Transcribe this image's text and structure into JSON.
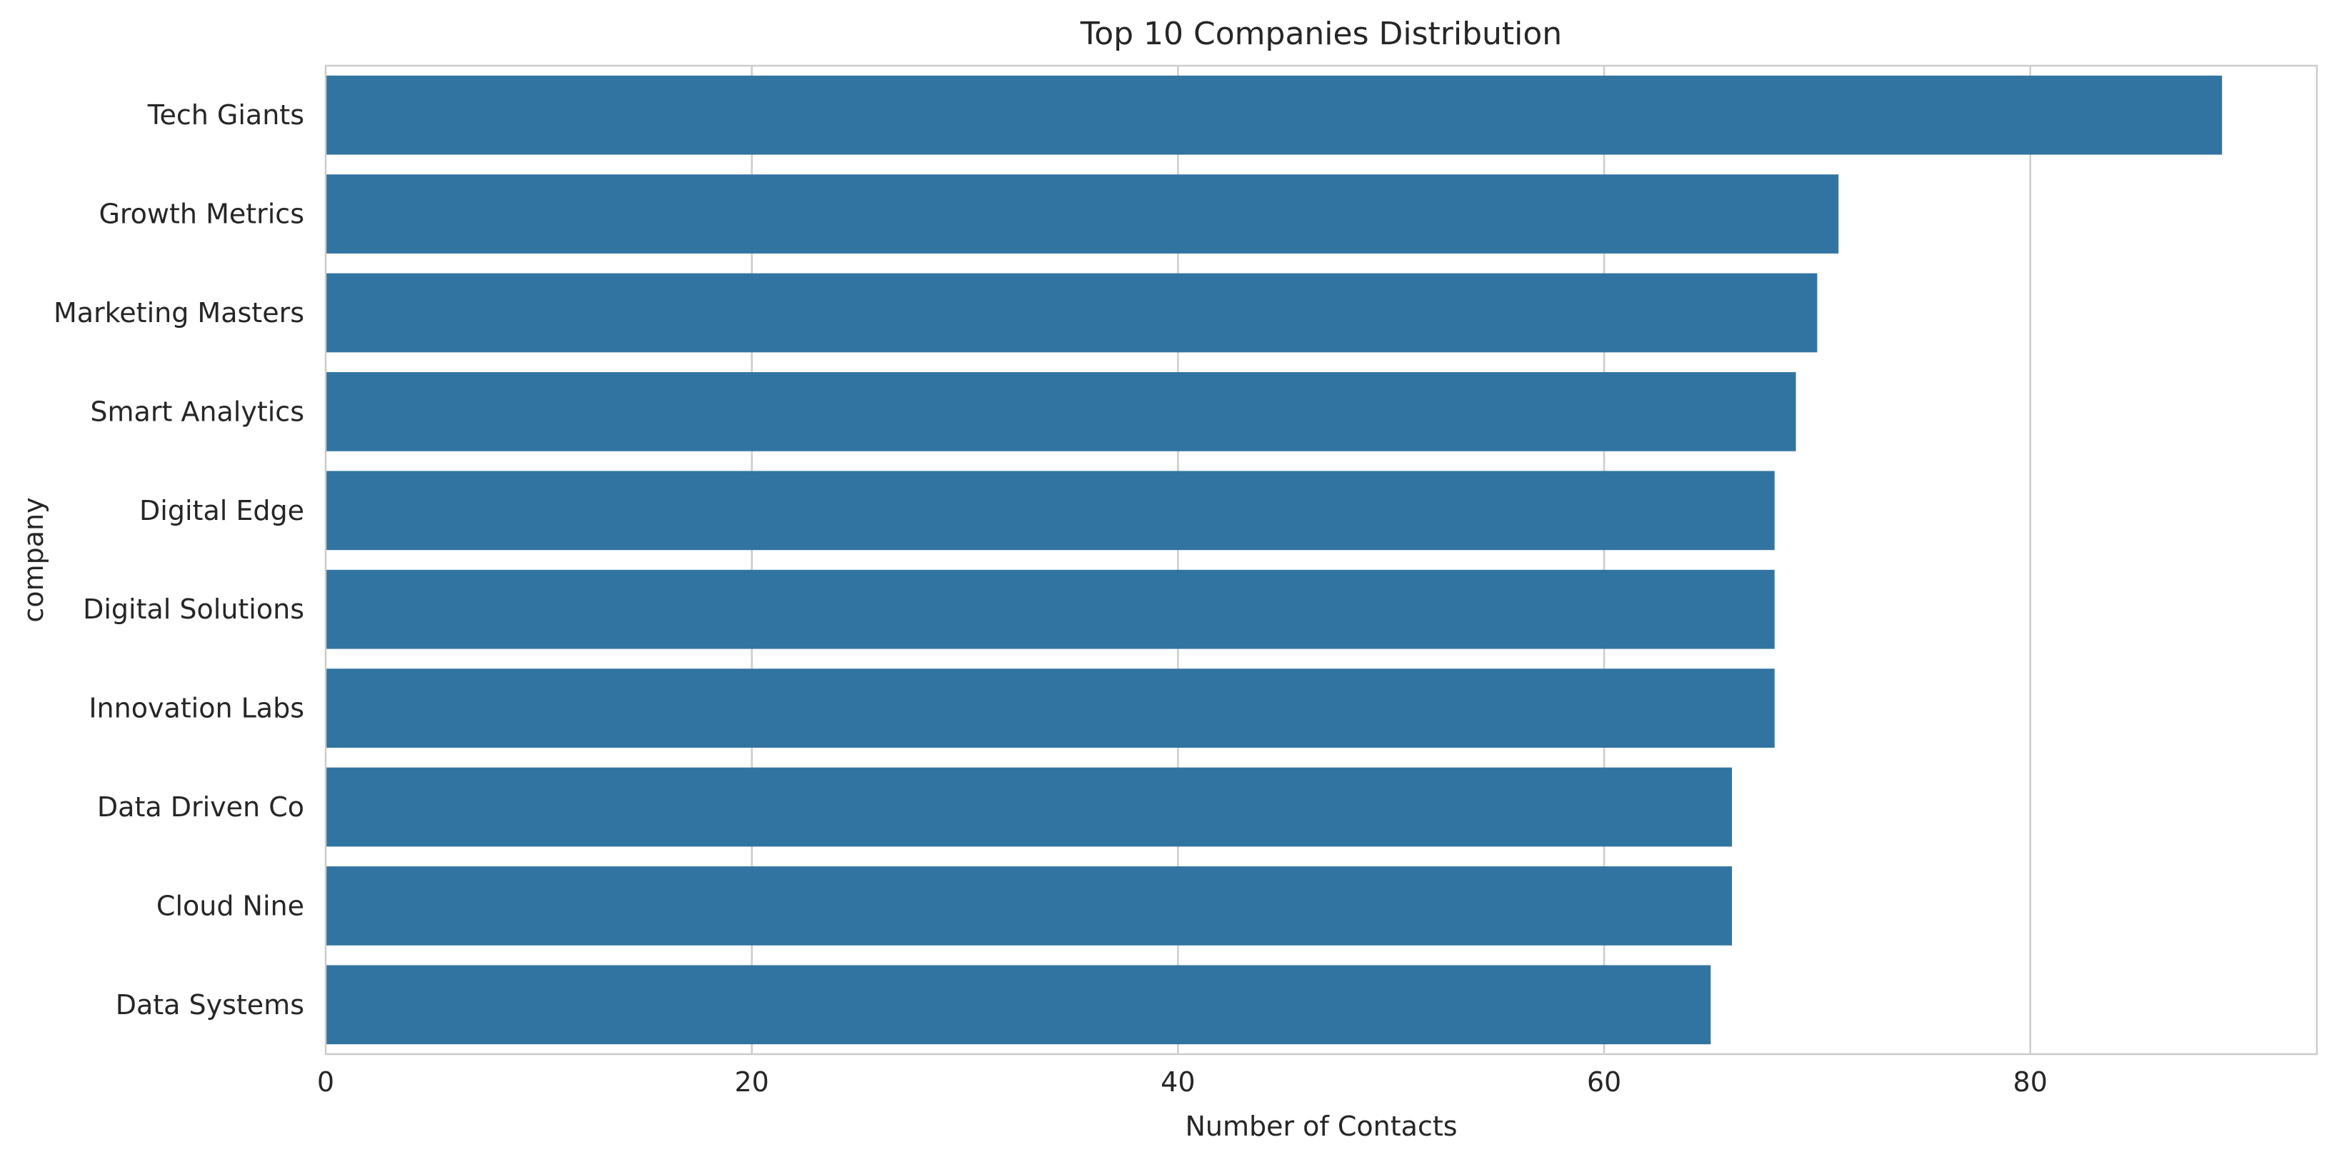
{
  "chart_data": {
    "type": "bar",
    "orientation": "horizontal",
    "title": "Top 10 Companies Distribution",
    "xlabel": "Number of Contacts",
    "ylabel": "company",
    "categories": [
      "Tech Giants",
      "Growth Metrics",
      "Marketing Masters",
      "Smart Analytics",
      "Digital Edge",
      "Digital Solutions",
      "Innovation Labs",
      "Data Driven Co",
      "Cloud Nine",
      "Data Systems"
    ],
    "values": [
      89,
      71,
      70,
      69,
      68,
      68,
      68,
      66,
      66,
      65
    ],
    "xlim": [
      0,
      93.45
    ],
    "xticks": [
      0,
      20,
      40,
      60,
      80
    ],
    "xtick_labels": [
      "0",
      "20",
      "40",
      "60",
      "80"
    ],
    "grid": "vertical",
    "bar_color": "#3274a1"
  }
}
